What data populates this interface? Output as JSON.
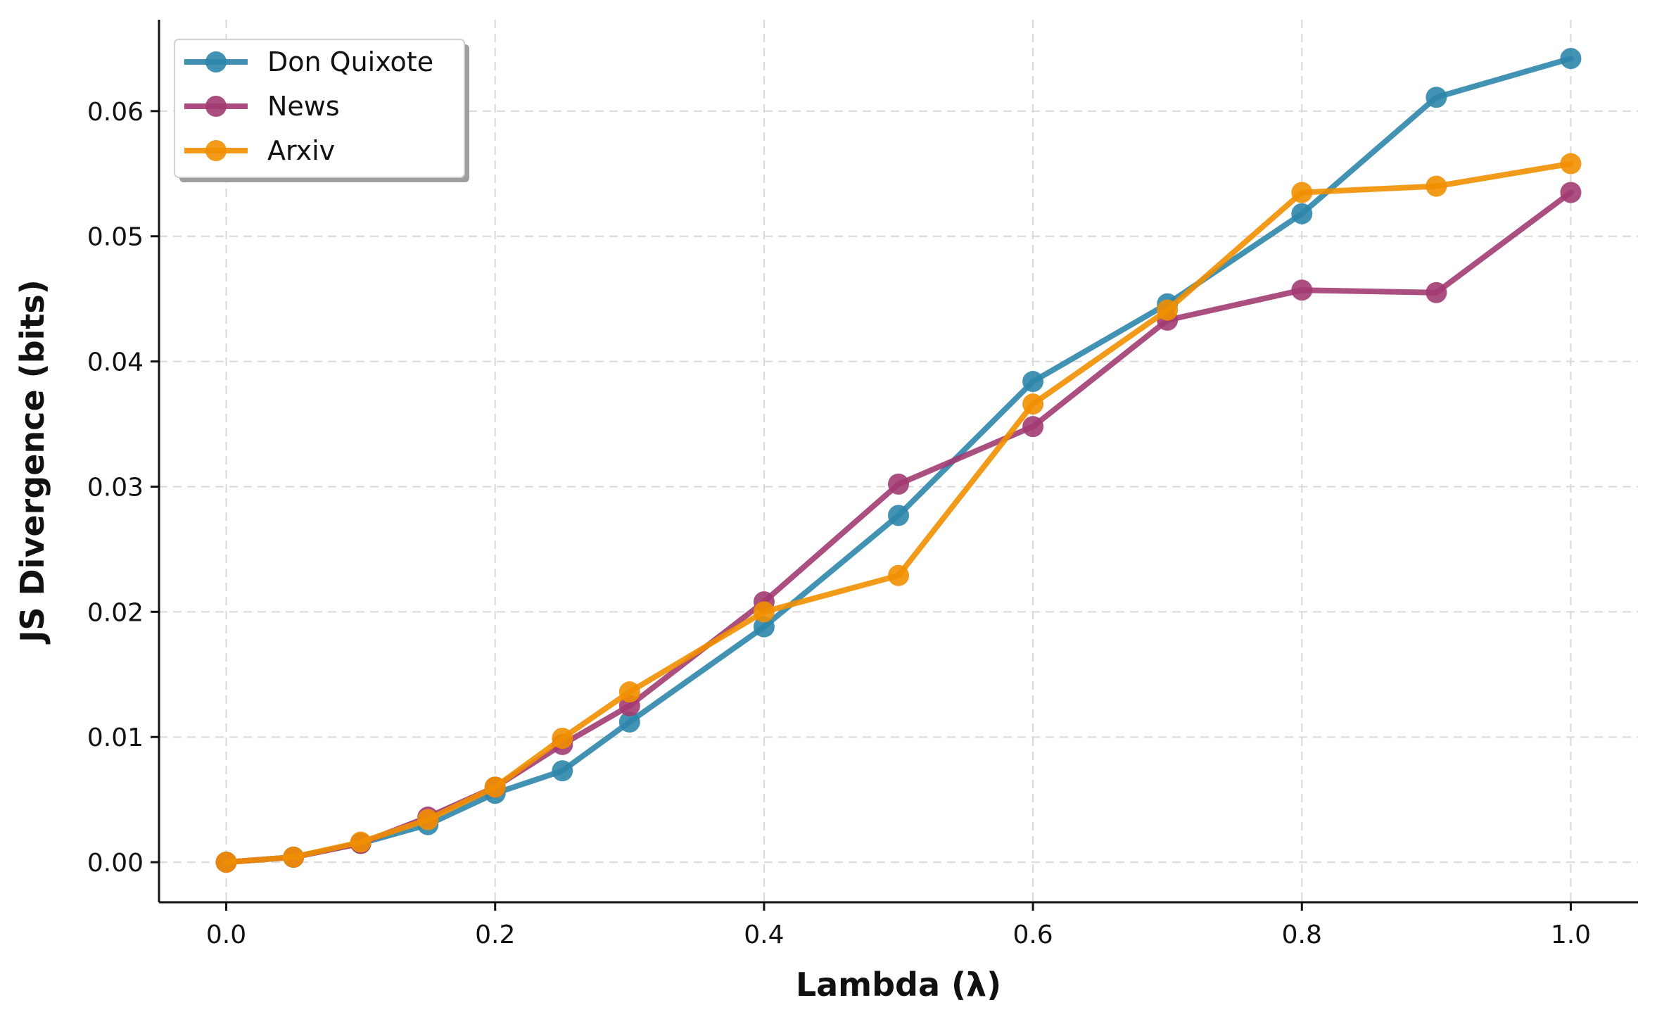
{
  "chart_data": {
    "type": "line",
    "title": "",
    "xlabel": "Lambda (λ)",
    "ylabel": "JS Divergence (bits)",
    "xlim": [
      -0.05,
      1.05
    ],
    "ylim": [
      -0.0032,
      0.0673
    ],
    "xticks": [
      0.0,
      0.2,
      0.4,
      0.6,
      0.8,
      1.0
    ],
    "xtick_labels": [
      "0.0",
      "0.2",
      "0.4",
      "0.6",
      "0.8",
      "1.0"
    ],
    "yticks": [
      0.0,
      0.01,
      0.02,
      0.03,
      0.04,
      0.05,
      0.06
    ],
    "ytick_labels": [
      "0.00",
      "0.01",
      "0.02",
      "0.03",
      "0.04",
      "0.05",
      "0.06"
    ],
    "grid": true,
    "legend_position": "top-left",
    "x": [
      0.0,
      0.05,
      0.1,
      0.15,
      0.2,
      0.25,
      0.3,
      0.4,
      0.5,
      0.6,
      0.7,
      0.8,
      0.9,
      1.0
    ],
    "series": [
      {
        "name": "Don Quixote",
        "color": "#2e86ab",
        "values": [
          0.0,
          0.0004,
          0.0015,
          0.003,
          0.0055,
          0.0073,
          0.0112,
          0.0188,
          0.0277,
          0.0384,
          0.0446,
          0.0518,
          0.0611,
          0.0642
        ]
      },
      {
        "name": "News",
        "color": "#a23b72",
        "values": [
          0.0,
          0.0004,
          0.0015,
          0.0036,
          0.006,
          0.0094,
          0.0125,
          0.0208,
          0.0302,
          0.0348,
          0.0433,
          0.0457,
          0.0455,
          0.0535
        ]
      },
      {
        "name": "Arxiv",
        "color": "#f18f01",
        "values": [
          0.0,
          0.0004,
          0.0016,
          0.0034,
          0.006,
          0.0099,
          0.0136,
          0.02,
          0.0229,
          0.0366,
          0.0441,
          0.0535,
          0.054,
          0.0558
        ]
      }
    ]
  }
}
